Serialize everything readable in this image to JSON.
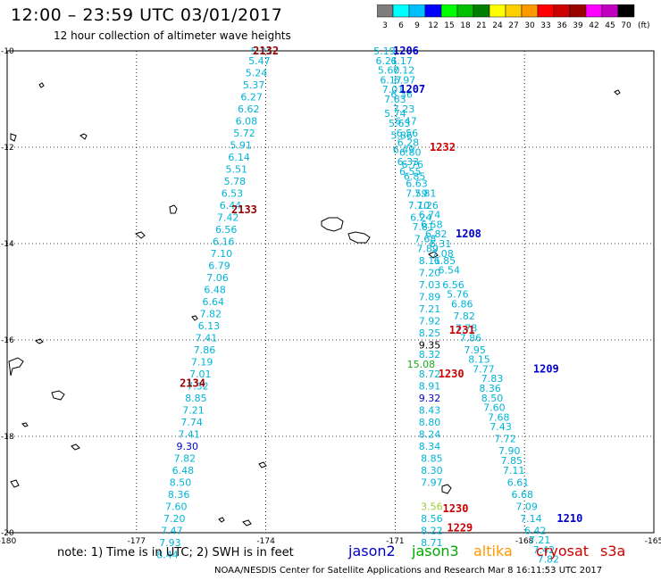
{
  "header": {
    "title": "12:00 – 23:59 UTC 03/01/2017",
    "subtitle": "12 hour collection of altimeter wave heights"
  },
  "legend": {
    "unit": "(ft)",
    "swatches": [
      {
        "label": "3",
        "color": "#7d7d7d"
      },
      {
        "label": "6",
        "color": "#00ffff"
      },
      {
        "label": "9",
        "color": "#00bfff"
      },
      {
        "label": "12",
        "color": "#0000ff"
      },
      {
        "label": "15",
        "color": "#00ff00"
      },
      {
        "label": "18",
        "color": "#00c000"
      },
      {
        "label": "21",
        "color": "#008000"
      },
      {
        "label": "24",
        "color": "#ffff00"
      },
      {
        "label": "27",
        "color": "#ffd000"
      },
      {
        "label": "30",
        "color": "#ff9900"
      },
      {
        "label": "33",
        "color": "#ff0000"
      },
      {
        "label": "36",
        "color": "#cc0000"
      },
      {
        "label": "39",
        "color": "#990000"
      },
      {
        "label": "42",
        "color": "#ff00ff"
      },
      {
        "label": "45",
        "color": "#c000c0"
      },
      {
        "label": "70",
        "color": "#000000"
      }
    ]
  },
  "axes": {
    "lon_ticks": [
      "-180",
      "-177",
      "-174",
      "-171",
      "-168",
      "-165"
    ],
    "lat_ticks": [
      "-10",
      "-12",
      "-14",
      "-16",
      "-18",
      "-20"
    ]
  },
  "colors": {
    "swh_low": "#00b4d8",
    "swh_mid": "#0000cc",
    "swh_high": "#22aa22",
    "swh_black": "#000000",
    "jason2": "#0000cc",
    "jason3": "#00aa00",
    "altika": "#ff9900",
    "cryosat": "#cc0000",
    "s3a": "#cc0000"
  },
  "track_labels": [
    {
      "text": "2132",
      "color": "#990000",
      "lon": -174.0,
      "lat": -10.0
    },
    {
      "text": "2133",
      "color": "#990000",
      "lon": -174.5,
      "lat": -13.3
    },
    {
      "text": "2134",
      "color": "#990000",
      "lon": -175.7,
      "lat": -16.9
    },
    {
      "text": "1206",
      "color": "#0000cc",
      "lon": -170.75,
      "lat": -10.0
    },
    {
      "text": "1207",
      "color": "#0000cc",
      "lon": -170.6,
      "lat": -10.8
    },
    {
      "text": "1232",
      "color": "#cc0000",
      "lon": -169.9,
      "lat": -12.0
    },
    {
      "text": "1208",
      "color": "#0000cc",
      "lon": -169.3,
      "lat": -13.8
    },
    {
      "text": "1231",
      "color": "#cc0000",
      "lon": -169.45,
      "lat": -15.8
    },
    {
      "text": "1230",
      "color": "#cc0000",
      "lon": -169.7,
      "lat": -16.7
    },
    {
      "text": "1209",
      "color": "#0000cc",
      "lon": -167.5,
      "lat": -16.6
    },
    {
      "text": "1230",
      "color": "#cc0000",
      "lon": -169.6,
      "lat": -19.5
    },
    {
      "text": "1229",
      "color": "#cc0000",
      "lon": -169.5,
      "lat": -19.9
    },
    {
      "text": "1210",
      "color": "#0000cc",
      "lon": -166.95,
      "lat": -19.7
    }
  ],
  "tracks": [
    {
      "name": "2132-2134",
      "color": "#00b4d8",
      "points": [
        {
          "lon": -174.1,
          "lat": -10.0,
          "v": "5.21"
        },
        {
          "lon": -174.15,
          "lat": -10.2,
          "v": "5.47"
        },
        {
          "lon": -174.22,
          "lat": -10.45,
          "v": "5.24"
        },
        {
          "lon": -174.28,
          "lat": -10.7,
          "v": "5.37"
        },
        {
          "lon": -174.33,
          "lat": -10.95,
          "v": "6.27"
        },
        {
          "lon": -174.4,
          "lat": -11.2,
          "v": "6.62"
        },
        {
          "lon": -174.45,
          "lat": -11.45,
          "v": "6.08"
        },
        {
          "lon": -174.5,
          "lat": -11.7,
          "v": "5.72"
        },
        {
          "lon": -174.58,
          "lat": -11.95,
          "v": "5.91"
        },
        {
          "lon": -174.62,
          "lat": -12.2,
          "v": "6.14"
        },
        {
          "lon": -174.68,
          "lat": -12.45,
          "v": "5.51"
        },
        {
          "lon": -174.72,
          "lat": -12.7,
          "v": "5.78"
        },
        {
          "lon": -174.78,
          "lat": -12.95,
          "v": "6.53"
        },
        {
          "lon": -174.82,
          "lat": -13.2,
          "v": "6.44"
        },
        {
          "lon": -174.88,
          "lat": -13.45,
          "v": "7.42"
        },
        {
          "lon": -174.92,
          "lat": -13.7,
          "v": "6.56"
        },
        {
          "lon": -174.98,
          "lat": -13.95,
          "v": "6.16"
        },
        {
          "lon": -175.03,
          "lat": -14.2,
          "v": "7.10"
        },
        {
          "lon": -175.08,
          "lat": -14.45,
          "v": "6.79"
        },
        {
          "lon": -175.12,
          "lat": -14.7,
          "v": "7.06"
        },
        {
          "lon": -175.18,
          "lat": -14.95,
          "v": "6.48"
        },
        {
          "lon": -175.22,
          "lat": -15.2,
          "v": "6.64"
        },
        {
          "lon": -175.28,
          "lat": -15.45,
          "v": "7.82"
        },
        {
          "lon": -175.32,
          "lat": -15.7,
          "v": "6.13"
        },
        {
          "lon": -175.38,
          "lat": -15.95,
          "v": "7.41"
        },
        {
          "lon": -175.42,
          "lat": -16.2,
          "v": "7.86"
        },
        {
          "lon": -175.48,
          "lat": -16.45,
          "v": "7.19"
        },
        {
          "lon": -175.52,
          "lat": -16.7,
          "v": "7.01"
        },
        {
          "lon": -175.58,
          "lat": -16.95,
          "v": "7.32"
        },
        {
          "lon": -175.62,
          "lat": -17.2,
          "v": "8.85"
        },
        {
          "lon": -175.68,
          "lat": -17.45,
          "v": "7.21"
        },
        {
          "lon": -175.72,
          "lat": -17.7,
          "v": "7.74"
        },
        {
          "lon": -175.78,
          "lat": -17.95,
          "v": "7.41"
        },
        {
          "lon": -175.82,
          "lat": -18.2,
          "v": "9.30",
          "c": "#0000cc"
        },
        {
          "lon": -175.88,
          "lat": -18.45,
          "v": "7.82"
        },
        {
          "lon": -175.92,
          "lat": -18.7,
          "v": "6.48"
        },
        {
          "lon": -175.98,
          "lat": -18.95,
          "v": "8.50"
        },
        {
          "lon": -176.02,
          "lat": -19.2,
          "v": "8.36"
        },
        {
          "lon": -176.08,
          "lat": -19.45,
          "v": "7.60"
        },
        {
          "lon": -176.12,
          "lat": -19.7,
          "v": "7.20"
        },
        {
          "lon": -176.18,
          "lat": -19.95,
          "v": "7.47"
        },
        {
          "lon": -176.22,
          "lat": -20.2,
          "v": "7.93"
        },
        {
          "lon": -176.28,
          "lat": -20.45,
          "v": "8.44"
        }
      ]
    },
    {
      "name": "1206-1210",
      "color": "#00b4d8",
      "points": [
        {
          "lon": -171.25,
          "lat": -10.0,
          "v": "5.19"
        },
        {
          "lon": -171.2,
          "lat": -10.2,
          "v": "6.21"
        },
        {
          "lon": -170.85,
          "lat": -10.2,
          "v": "6.17"
        },
        {
          "lon": -171.15,
          "lat": -10.4,
          "v": "5.60"
        },
        {
          "lon": -170.8,
          "lat": -10.4,
          "v": "7.12"
        },
        {
          "lon": -171.1,
          "lat": -10.6,
          "v": "6.17"
        },
        {
          "lon": -170.78,
          "lat": -10.6,
          "v": "6.97"
        },
        {
          "lon": -171.05,
          "lat": -10.8,
          "v": "7.01"
        },
        {
          "lon": -170.85,
          "lat": -10.9,
          "v": "6.36"
        },
        {
          "lon": -171.0,
          "lat": -11.0,
          "v": "7.63"
        },
        {
          "lon": -170.8,
          "lat": -11.2,
          "v": "7.23"
        },
        {
          "lon": -171.0,
          "lat": -11.3,
          "v": "5.74"
        },
        {
          "lon": -170.75,
          "lat": -11.45,
          "v": "6.47"
        },
        {
          "lon": -170.9,
          "lat": -11.5,
          "v": "5.63"
        },
        {
          "lon": -170.72,
          "lat": -11.7,
          "v": "6.56"
        },
        {
          "lon": -170.85,
          "lat": -11.75,
          "v": "5.86"
        },
        {
          "lon": -170.7,
          "lat": -11.9,
          "v": "6.28"
        },
        {
          "lon": -170.8,
          "lat": -12.05,
          "v": "6.49"
        },
        {
          "lon": -170.65,
          "lat": -12.1,
          "v": "6.80"
        },
        {
          "lon": -170.7,
          "lat": -12.3,
          "v": "6.33"
        },
        {
          "lon": -170.6,
          "lat": -12.35,
          "v": "6.76"
        },
        {
          "lon": -170.65,
          "lat": -12.5,
          "v": "6.55"
        },
        {
          "lon": -170.55,
          "lat": -12.6,
          "v": "6.85"
        },
        {
          "lon": -170.5,
          "lat": -12.75,
          "v": "6.63"
        },
        {
          "lon": -170.5,
          "lat": -12.95,
          "v": "7.59"
        },
        {
          "lon": -170.3,
          "lat": -12.95,
          "v": "7.81"
        },
        {
          "lon": -170.45,
          "lat": -13.2,
          "v": "7.10"
        },
        {
          "lon": -170.25,
          "lat": -13.2,
          "v": "7.26"
        },
        {
          "lon": -170.4,
          "lat": -13.45,
          "v": "6.24"
        },
        {
          "lon": -170.2,
          "lat": -13.4,
          "v": "6.74"
        },
        {
          "lon": -170.35,
          "lat": -13.65,
          "v": "7.81"
        },
        {
          "lon": -170.15,
          "lat": -13.6,
          "v": "6.58"
        },
        {
          "lon": -170.3,
          "lat": -13.9,
          "v": "7.68"
        },
        {
          "lon": -170.05,
          "lat": -13.8,
          "v": "6.82"
        },
        {
          "lon": -170.25,
          "lat": -14.1,
          "v": "7.89"
        },
        {
          "lon": -169.95,
          "lat": -14.0,
          "v": "6.31"
        },
        {
          "lon": -170.2,
          "lat": -14.35,
          "v": "8.11"
        },
        {
          "lon": -169.9,
          "lat": -14.2,
          "v": "7.08"
        },
        {
          "lon": -170.2,
          "lat": -14.6,
          "v": "7.20"
        },
        {
          "lon": -169.85,
          "lat": -14.35,
          "v": "6.85"
        },
        {
          "lon": -170.2,
          "lat": -14.85,
          "v": "7.03"
        },
        {
          "lon": -169.75,
          "lat": -14.55,
          "v": "6.54"
        },
        {
          "lon": -170.2,
          "lat": -15.1,
          "v": "7.89"
        },
        {
          "lon": -169.65,
          "lat": -14.85,
          "v": "6.56"
        },
        {
          "lon": -170.2,
          "lat": -15.35,
          "v": "7.21"
        },
        {
          "lon": -169.55,
          "lat": -15.05,
          "v": "5.76"
        },
        {
          "lon": -170.2,
          "lat": -15.6,
          "v": "7.92"
        },
        {
          "lon": -169.45,
          "lat": -15.25,
          "v": "6.86"
        },
        {
          "lon": -170.2,
          "lat": -15.85,
          "v": "8.25"
        },
        {
          "lon": -169.4,
          "lat": -15.5,
          "v": "7.82"
        },
        {
          "lon": -170.2,
          "lat": -16.1,
          "v": "9.35",
          "c": "#000000"
        },
        {
          "lon": -169.35,
          "lat": -15.75,
          "v": "7.78"
        },
        {
          "lon": -170.2,
          "lat": -16.3,
          "v": "8.32"
        },
        {
          "lon": -169.25,
          "lat": -15.95,
          "v": "7.86"
        },
        {
          "lon": -170.4,
          "lat": -16.5,
          "v": "15.08",
          "c": "#22aa22"
        },
        {
          "lon": -169.15,
          "lat": -16.2,
          "v": "7.95"
        },
        {
          "lon": -170.2,
          "lat": -16.7,
          "v": "8.72"
        },
        {
          "lon": -169.05,
          "lat": -16.4,
          "v": "8.15"
        },
        {
          "lon": -170.2,
          "lat": -16.95,
          "v": "8.91"
        },
        {
          "lon": -168.95,
          "lat": -16.6,
          "v": "7.77"
        },
        {
          "lon": -170.2,
          "lat": -17.2,
          "v": "9.32",
          "c": "#0000cc"
        },
        {
          "lon": -168.75,
          "lat": -16.8,
          "v": "7.83"
        },
        {
          "lon": -170.2,
          "lat": -17.45,
          "v": "8.43"
        },
        {
          "lon": -168.8,
          "lat": -17.0,
          "v": "8.36"
        },
        {
          "lon": -170.2,
          "lat": -17.7,
          "v": "8.80"
        },
        {
          "lon": -168.75,
          "lat": -17.2,
          "v": "8.50"
        },
        {
          "lon": -170.2,
          "lat": -17.95,
          "v": "8.24"
        },
        {
          "lon": -168.7,
          "lat": -17.4,
          "v": "7.60"
        },
        {
          "lon": -170.2,
          "lat": -18.2,
          "v": "8.34"
        },
        {
          "lon": -168.6,
          "lat": -17.6,
          "v": "7.68"
        },
        {
          "lon": -170.15,
          "lat": -18.45,
          "v": "8.85"
        },
        {
          "lon": -168.55,
          "lat": -17.8,
          "v": "7.43"
        },
        {
          "lon": -170.15,
          "lat": -18.7,
          "v": "8.30"
        },
        {
          "lon": -168.45,
          "lat": -18.05,
          "v": "7.72"
        },
        {
          "lon": -170.15,
          "lat": -18.95,
          "v": "7.97"
        },
        {
          "lon": -168.35,
          "lat": -18.3,
          "v": "7.90"
        },
        {
          "lon": -168.3,
          "lat": -18.5,
          "v": "7.85"
        },
        {
          "lon": -168.25,
          "lat": -18.7,
          "v": "7.11"
        },
        {
          "lon": -168.15,
          "lat": -18.95,
          "v": "6.61"
        },
        {
          "lon": -168.05,
          "lat": -19.2,
          "v": "6.68"
        },
        {
          "lon": -170.15,
          "lat": -19.45,
          "v": "3.56",
          "c": "#99cc33"
        },
        {
          "lon": -167.95,
          "lat": -19.45,
          "v": "7.09"
        },
        {
          "lon": -167.85,
          "lat": -19.7,
          "v": "7.14"
        },
        {
          "lon": -170.15,
          "lat": -19.7,
          "v": "8.56"
        },
        {
          "lon": -167.75,
          "lat": -19.95,
          "v": "6.42"
        },
        {
          "lon": -170.15,
          "lat": -19.95,
          "v": "8.22"
        },
        {
          "lon": -167.65,
          "lat": -20.15,
          "v": "7.21"
        },
        {
          "lon": -170.15,
          "lat": -20.2,
          "v": "8.71"
        },
        {
          "lon": -167.55,
          "lat": -20.35,
          "v": "7.42"
        },
        {
          "lon": -167.45,
          "lat": -20.55,
          "v": "7.82"
        }
      ]
    }
  ],
  "footer": {
    "note": "note:  1) Time is in UTC;  2) SWH is in feet",
    "sat_jason2": "jason2",
    "sat_jason3": "jason3",
    "sat_altika": "altika",
    "sat_cryosat": "cryosat",
    "sat_s3a": "s3a",
    "credit": "NOAA/NESDIS Center for Satellite Applications and Research   Mar  8 16:11:53 UTC 2017"
  }
}
